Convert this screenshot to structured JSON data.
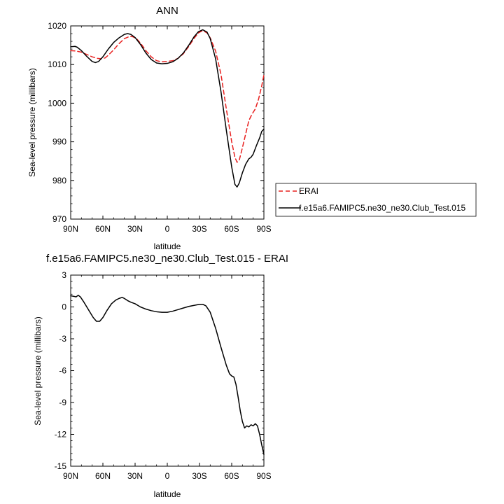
{
  "chart_data": [
    {
      "type": "line",
      "title": "ANN",
      "xlabel": "latitude",
      "ylabel": "Sea-level pressure (millibars)",
      "xlim": [
        90,
        -90
      ],
      "ylim": [
        970,
        1020
      ],
      "xticks": [
        "90N",
        "60N",
        "30N",
        "0",
        "30S",
        "60S",
        "90S"
      ],
      "yticks": [
        "970",
        "980",
        "990",
        "1000",
        "1010",
        "1020"
      ],
      "legend_position": "right",
      "grid": false,
      "series": [
        {
          "name": "ERAI",
          "color": "#e8201f",
          "style": "dashed",
          "points": [
            [
              90,
              1013.6
            ],
            [
              85,
              1013.5
            ],
            [
              80,
              1013.2
            ],
            [
              75,
              1012.6
            ],
            [
              70,
              1012.0
            ],
            [
              65,
              1011.6
            ],
            [
              62,
              1011.5
            ],
            [
              58,
              1011.7
            ],
            [
              55,
              1012.4
            ],
            [
              50,
              1013.8
            ],
            [
              45,
              1015.4
            ],
            [
              40,
              1016.7
            ],
            [
              35,
              1017.3
            ],
            [
              32,
              1017.2
            ],
            [
              28,
              1016.5
            ],
            [
              24,
              1015.2
            ],
            [
              20,
              1013.6
            ],
            [
              15,
              1012.0
            ],
            [
              10,
              1011.0
            ],
            [
              5,
              1010.7
            ],
            [
              0,
              1010.8
            ],
            [
              -5,
              1011.0
            ],
            [
              -10,
              1011.6
            ],
            [
              -15,
              1012.8
            ],
            [
              -20,
              1014.7
            ],
            [
              -25,
              1016.8
            ],
            [
              -29,
              1018.2
            ],
            [
              -33,
              1018.8
            ],
            [
              -37,
              1018.2
            ],
            [
              -40,
              1016.9
            ],
            [
              -45,
              1013.5
            ],
            [
              -50,
              1007.5
            ],
            [
              -55,
              998.5
            ],
            [
              -60,
              990.0
            ],
            [
              -63,
              986.0
            ],
            [
              -65,
              984.7
            ],
            [
              -67,
              985.2
            ],
            [
              -70,
              988.5
            ],
            [
              -73,
              992.0
            ],
            [
              -76,
              995.5
            ],
            [
              -79,
              997.2
            ],
            [
              -82,
              998.5
            ],
            [
              -85,
              1001.0
            ],
            [
              -88,
              1004.5
            ],
            [
              -90,
              1007.3
            ]
          ]
        },
        {
          "name": "f.e15a6.FAMIPC5.ne30_ne30.Club_Test.015",
          "color": "#000000",
          "style": "solid",
          "points": [
            [
              90,
              1014.6
            ],
            [
              86,
              1014.7
            ],
            [
              84,
              1014.5
            ],
            [
              80,
              1013.6
            ],
            [
              75,
              1012.1
            ],
            [
              70,
              1010.8
            ],
            [
              67,
              1010.5
            ],
            [
              64,
              1010.8
            ],
            [
              60,
              1012.0
            ],
            [
              55,
              1014.0
            ],
            [
              50,
              1015.7
            ],
            [
              45,
              1016.9
            ],
            [
              40,
              1017.8
            ],
            [
              37,
              1018.0
            ],
            [
              34,
              1017.8
            ],
            [
              30,
              1017.0
            ],
            [
              25,
              1015.2
            ],
            [
              20,
              1013.0
            ],
            [
              15,
              1011.3
            ],
            [
              10,
              1010.4
            ],
            [
              5,
              1010.2
            ],
            [
              0,
              1010.3
            ],
            [
              -5,
              1010.7
            ],
            [
              -10,
              1011.6
            ],
            [
              -15,
              1013.0
            ],
            [
              -20,
              1015.0
            ],
            [
              -25,
              1017.2
            ],
            [
              -29,
              1018.5
            ],
            [
              -33,
              1019.0
            ],
            [
              -37,
              1018.4
            ],
            [
              -40,
              1016.7
            ],
            [
              -45,
              1011.5
            ],
            [
              -50,
              1003.0
            ],
            [
              -55,
              993.0
            ],
            [
              -60,
              983.5
            ],
            [
              -63,
              979.0
            ],
            [
              -65,
              978.3
            ],
            [
              -67,
              979.3
            ],
            [
              -70,
              982.0
            ],
            [
              -73,
              984.2
            ],
            [
              -76,
              985.6
            ],
            [
              -78,
              986.0
            ],
            [
              -80,
              986.8
            ],
            [
              -83,
              989.0
            ],
            [
              -86,
              991.0
            ],
            [
              -88,
              992.7
            ],
            [
              -90,
              993.3
            ]
          ]
        }
      ]
    },
    {
      "type": "line",
      "title": "f.e15a6.FAMIPC5.ne30_ne30.Club_Test.015 - ERAI",
      "xlabel": "latitude",
      "ylabel": "Sea-level pressure (millibars)",
      "xlim": [
        90,
        -90
      ],
      "ylim": [
        -15,
        3
      ],
      "xticks": [
        "90N",
        "60N",
        "30N",
        "0",
        "30S",
        "60S",
        "90S"
      ],
      "yticks": [
        "-15",
        "-12",
        "-9",
        "-6",
        "-3",
        "0",
        "3"
      ],
      "grid": false,
      "series": [
        {
          "color": "#000000",
          "style": "solid",
          "points": [
            [
              90,
              1.05
            ],
            [
              87,
              1.0
            ],
            [
              85,
              0.95
            ],
            [
              83,
              1.1
            ],
            [
              81,
              0.95
            ],
            [
              78,
              0.5
            ],
            [
              75,
              0.0
            ],
            [
              72,
              -0.5
            ],
            [
              69,
              -1.0
            ],
            [
              66,
              -1.35
            ],
            [
              63,
              -1.35
            ],
            [
              60,
              -1.0
            ],
            [
              56,
              -0.3
            ],
            [
              52,
              0.3
            ],
            [
              48,
              0.65
            ],
            [
              45,
              0.8
            ],
            [
              42,
              0.9
            ],
            [
              40,
              0.8
            ],
            [
              37,
              0.6
            ],
            [
              34,
              0.45
            ],
            [
              30,
              0.3
            ],
            [
              25,
              0.0
            ],
            [
              20,
              -0.2
            ],
            [
              15,
              -0.35
            ],
            [
              10,
              -0.45
            ],
            [
              5,
              -0.5
            ],
            [
              0,
              -0.5
            ],
            [
              -5,
              -0.4
            ],
            [
              -10,
              -0.25
            ],
            [
              -15,
              -0.1
            ],
            [
              -20,
              0.05
            ],
            [
              -25,
              0.15
            ],
            [
              -30,
              0.25
            ],
            [
              -33,
              0.25
            ],
            [
              -36,
              0.1
            ],
            [
              -40,
              -0.5
            ],
            [
              -45,
              -2.0
            ],
            [
              -50,
              -3.8
            ],
            [
              -55,
              -5.5
            ],
            [
              -58,
              -6.3
            ],
            [
              -60,
              -6.5
            ],
            [
              -62,
              -6.6
            ],
            [
              -64,
              -7.3
            ],
            [
              -66,
              -8.5
            ],
            [
              -68,
              -9.8
            ],
            [
              -70,
              -10.8
            ],
            [
              -72,
              -11.4
            ],
            [
              -74,
              -11.2
            ],
            [
              -76,
              -11.3
            ],
            [
              -78,
              -11.1
            ],
            [
              -80,
              -11.2
            ],
            [
              -82,
              -11.0
            ],
            [
              -84,
              -11.2
            ],
            [
              -86,
              -12.0
            ],
            [
              -88,
              -13.0
            ],
            [
              -90,
              -13.9
            ]
          ]
        }
      ]
    }
  ]
}
